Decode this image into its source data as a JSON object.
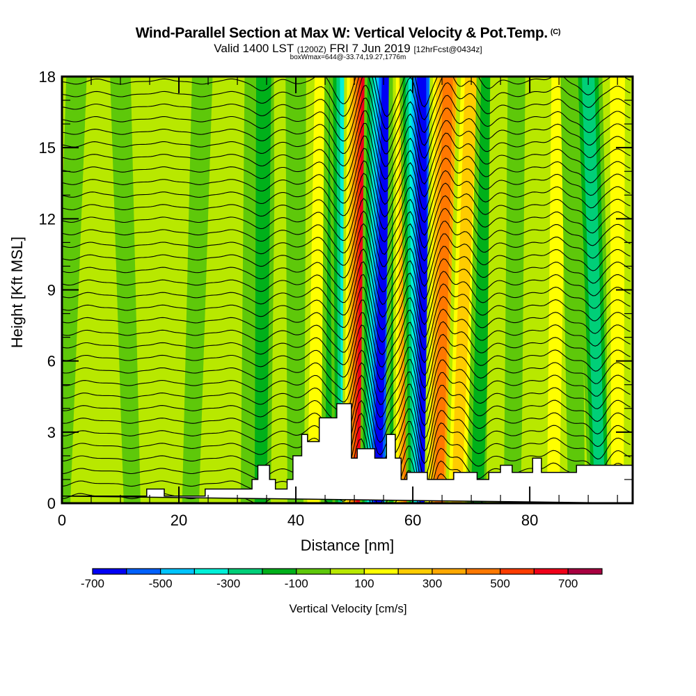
{
  "header": {
    "title": "Wind-Parallel Section at Max W: Vertical Velocity & Pot.Temp.",
    "copyright": "(C)",
    "valid_prefix": "Valid 1400 LST",
    "valid_utc": "(1200Z)",
    "valid_date": "FRI 7 Jun 2019",
    "forecast": "[12hrFcst@0434z]",
    "box_wmax": "boxWmax=644@-33.74,19.27,1776m"
  },
  "chart_data": {
    "type": "heatmap",
    "title": "Wind-Parallel Section at Max W: Vertical Velocity & Pot.Temp.",
    "xlabel": "Distance [nm]",
    "ylabel": "Height [Kft MSL]",
    "xlim": [
      0,
      97.6
    ],
    "ylim": [
      0,
      18
    ],
    "x_ticks": [
      "0",
      "20",
      "40",
      "60",
      "80"
    ],
    "x_tick_values": [
      0,
      20,
      40,
      60,
      80
    ],
    "x_minor_step": 5,
    "y_ticks": [
      "0",
      "3",
      "6",
      "9",
      "12",
      "15",
      "18"
    ],
    "y_tick_values": [
      0,
      3,
      6,
      9,
      12,
      15,
      18
    ],
    "colorbar": {
      "title": "Vertical Velocity [cm/s]",
      "labels": [
        "-700",
        "-500",
        "-300",
        "-100",
        "100",
        "300",
        "500",
        "700"
      ],
      "label_values": [
        -700,
        -500,
        -300,
        -100,
        100,
        300,
        500,
        700
      ],
      "bounds": [
        -800,
        -600,
        -500,
        -400,
        -300,
        -200,
        -100,
        0,
        100,
        200,
        300,
        400,
        500,
        600,
        700,
        800
      ],
      "colors": [
        "#0000f5",
        "#0060ff",
        "#00c4ff",
        "#00f0d8",
        "#00cf78",
        "#00b01a",
        "#5ec80a",
        "#b8e800",
        "#ffff00",
        "#ffcc00",
        "#ffa800",
        "#ff7800",
        "#ff3c00",
        "#f00018",
        "#a80040"
      ]
    },
    "velocity_bands": [
      {
        "x_bottom": 0,
        "x_top": 2.5,
        "value": -50
      },
      {
        "x_bottom": 3,
        "x_top": 6,
        "value": 50
      },
      {
        "x_bottom": 12,
        "x_top": 10,
        "value": -50
      },
      {
        "x_bottom": 17,
        "x_top": 17.5,
        "value": 50
      },
      {
        "x_bottom": 22,
        "x_top": 24,
        "value": -50
      },
      {
        "x_bottom": 29,
        "x_top": 29,
        "value": 50
      },
      {
        "x_bottom": 32,
        "x_top": 33,
        "value": -50
      },
      {
        "x_bottom": 34,
        "x_top": 34.5,
        "value": -150
      },
      {
        "x_bottom": 38,
        "x_top": 38,
        "value": 50
      },
      {
        "x_bottom": 40,
        "x_top": 40,
        "value": -50
      },
      {
        "x_bottom": 43,
        "x_top": 44.5,
        "value": 150
      },
      {
        "x_bottom": 46,
        "x_top": 47,
        "value": -150
      },
      {
        "x_bottom": 48.5,
        "x_top": 48.5,
        "value": -350
      },
      {
        "x_bottom": 51,
        "x_top": 52,
        "value": 650
      },
      {
        "x_bottom": 54,
        "x_top": 55.5,
        "value": -650
      },
      {
        "x_bottom": 57,
        "x_top": 58,
        "value": -150
      },
      {
        "x_bottom": 59.5,
        "x_top": 60,
        "value": 550
      },
      {
        "x_bottom": 62,
        "x_top": 61.5,
        "value": -650
      },
      {
        "x_bottom": 64.5,
        "x_top": 66,
        "value": 450
      },
      {
        "x_bottom": 67.5,
        "x_top": 70,
        "value": 250
      },
      {
        "x_bottom": 71,
        "x_top": 73,
        "value": -150
      },
      {
        "x_bottom": 74,
        "x_top": 75,
        "value": 50
      },
      {
        "x_bottom": 77,
        "x_top": 78,
        "value": -50
      },
      {
        "x_bottom": 80,
        "x_top": 81,
        "value": 50
      },
      {
        "x_bottom": 84,
        "x_top": 85,
        "value": 150
      },
      {
        "x_bottom": 88,
        "x_top": 87,
        "value": -50
      },
      {
        "x_bottom": 92,
        "x_top": 90,
        "value": -250
      },
      {
        "x_bottom": 95,
        "x_top": 95,
        "value": 150
      }
    ],
    "terrain_kft": [
      [
        0,
        0.3
      ],
      [
        14.5,
        0.3
      ],
      [
        14.5,
        0.6
      ],
      [
        17.5,
        0.6
      ],
      [
        17.5,
        0.3
      ],
      [
        24.5,
        0.3
      ],
      [
        24.5,
        0.6
      ],
      [
        32.5,
        0.6
      ],
      [
        32.5,
        1.0
      ],
      [
        33.5,
        1.0
      ],
      [
        33.5,
        1.6
      ],
      [
        35.5,
        1.6
      ],
      [
        35.5,
        1.0
      ],
      [
        36.5,
        1.0
      ],
      [
        36.5,
        0.6
      ],
      [
        38.5,
        0.6
      ],
      [
        38.5,
        1.0
      ],
      [
        39.5,
        1.0
      ],
      [
        39.5,
        2.0
      ],
      [
        41,
        2.0
      ],
      [
        41,
        2.9
      ],
      [
        42,
        2.9
      ],
      [
        42,
        2.6
      ],
      [
        44,
        2.6
      ],
      [
        44,
        3.6
      ],
      [
        47,
        3.6
      ],
      [
        47,
        4.2
      ],
      [
        49.5,
        4.2
      ],
      [
        49.5,
        1.9
      ],
      [
        50.5,
        1.9
      ],
      [
        50.5,
        2.3
      ],
      [
        53.5,
        2.3
      ],
      [
        53.5,
        1.9
      ],
      [
        55.5,
        1.9
      ],
      [
        55.5,
        2.9
      ],
      [
        57,
        2.9
      ],
      [
        57,
        1.9
      ],
      [
        58,
        1.9
      ],
      [
        58,
        1.0
      ],
      [
        59,
        1.0
      ],
      [
        59,
        1.3
      ],
      [
        62.5,
        1.3
      ],
      [
        62.5,
        1.0
      ],
      [
        67,
        1.0
      ],
      [
        67,
        1.3
      ],
      [
        71,
        1.3
      ],
      [
        71,
        1.0
      ],
      [
        73,
        1.0
      ],
      [
        73,
        1.3
      ],
      [
        75,
        1.3
      ],
      [
        75,
        1.6
      ],
      [
        77,
        1.6
      ],
      [
        77,
        1.3
      ],
      [
        80.5,
        1.3
      ],
      [
        80.5,
        1.9
      ],
      [
        82,
        1.9
      ],
      [
        82,
        1.3
      ],
      [
        88,
        1.3
      ],
      [
        88,
        1.6
      ],
      [
        97.6,
        1.6
      ],
      [
        97.6,
        0
      ]
    ],
    "contour_series": "Potential Temperature"
  }
}
